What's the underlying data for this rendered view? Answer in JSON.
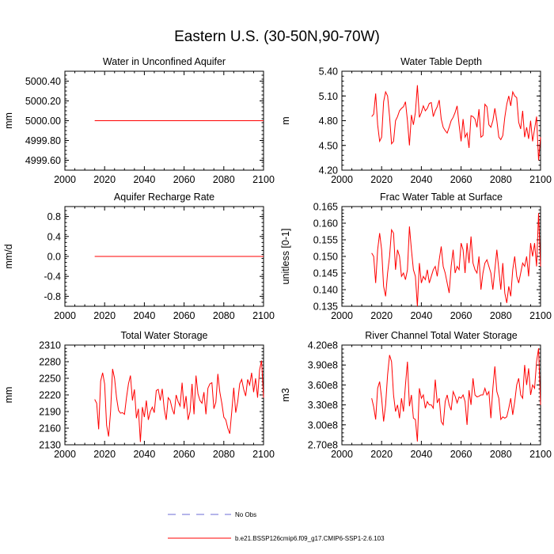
{
  "title": "Eastern U.S. (30-50N,90-70W)",
  "colors": {
    "series": "#ff0000",
    "obs": "#6b6bd6",
    "axis": "#000000"
  },
  "legend": {
    "obs_label": "No Obs",
    "model_label": "b.e21.BSSP126cmip6.f09_g17.CMIP6-SSP1-2.6.103"
  },
  "chart_data": [
    {
      "type": "line",
      "title": "Water in Unconfined Aquifer",
      "ylabel": "mm",
      "xlim": [
        2000,
        2100
      ],
      "ylim": [
        4999.5,
        5000.5
      ],
      "xticks": [
        2000,
        2020,
        2040,
        2060,
        2080,
        2100
      ],
      "xticklabels": [
        "2000",
        "2020",
        "2040",
        "2060",
        "2080",
        "2100"
      ],
      "yticks": [
        4999.6,
        4999.8,
        5000.0,
        5000.2,
        5000.4
      ],
      "yticklabels": [
        "4999.60",
        "4999.80",
        "5000.00",
        "5000.20",
        "5000.40"
      ],
      "x_start": 2015,
      "values": [
        5000,
        5000,
        5000,
        5000,
        5000,
        5000,
        5000,
        5000,
        5000,
        5000,
        5000,
        5000,
        5000,
        5000,
        5000,
        5000,
        5000,
        5000,
        5000,
        5000,
        5000,
        5000,
        5000,
        5000,
        5000,
        5000,
        5000,
        5000,
        5000,
        5000,
        5000,
        5000,
        5000,
        5000,
        5000,
        5000,
        5000,
        5000,
        5000,
        5000,
        5000,
        5000,
        5000,
        5000,
        5000,
        5000,
        5000,
        5000,
        5000,
        5000,
        5000,
        5000,
        5000,
        5000,
        5000,
        5000,
        5000,
        5000,
        5000,
        5000,
        5000,
        5000,
        5000,
        5000,
        5000,
        5000,
        5000,
        5000,
        5000,
        5000,
        5000,
        5000,
        5000,
        5000,
        5000,
        5000,
        5000,
        5000,
        5000,
        5000,
        5000,
        5000,
        5000,
        5000,
        5000,
        5000
      ]
    },
    {
      "type": "line",
      "title": "Water Table Depth",
      "ylabel": "m",
      "xlim": [
        2000,
        2100
      ],
      "ylim": [
        4.2,
        5.4
      ],
      "xticks": [
        2000,
        2020,
        2040,
        2060,
        2080,
        2100
      ],
      "xticklabels": [
        "2000",
        "2020",
        "2040",
        "2060",
        "2080",
        "2100"
      ],
      "yticks": [
        4.2,
        4.5,
        4.8,
        5.1,
        5.4
      ],
      "yticklabels": [
        "4.20",
        "4.50",
        "4.80",
        "5.10",
        "5.40"
      ],
      "x_start": 2015,
      "values": [
        4.85,
        4.88,
        5.13,
        4.75,
        4.55,
        4.6,
        5.03,
        5.15,
        5.1,
        4.85,
        4.52,
        4.55,
        4.8,
        4.85,
        4.92,
        4.95,
        4.97,
        5.03,
        4.8,
        4.5,
        4.87,
        4.75,
        4.9,
        5.23,
        4.84,
        4.9,
        4.98,
        4.92,
        4.95,
        5.01,
        5.02,
        4.85,
        4.92,
        4.97,
        5.05,
        4.82,
        4.72,
        4.68,
        4.65,
        4.72,
        4.8,
        4.84,
        4.9,
        4.98,
        4.75,
        4.55,
        4.82,
        4.6,
        4.65,
        4.47,
        4.86,
        4.85,
        4.82,
        4.72,
        4.94,
        4.6,
        4.62,
        5.0,
        4.97,
        4.75,
        4.72,
        4.8,
        4.95,
        4.8,
        4.6,
        4.57,
        4.62,
        4.84,
        5.0,
        5.1,
        4.98,
        5.15,
        5.1,
        5.08,
        4.78,
        4.7,
        4.92,
        4.6,
        4.72,
        4.58,
        4.8,
        4.55,
        4.7,
        4.85,
        4.32,
        4.6
      ]
    },
    {
      "type": "line",
      "title": "Aquifer Recharge Rate",
      "ylabel": "mm/d",
      "xlim": [
        2000,
        2100
      ],
      "ylim": [
        -1.0,
        1.0
      ],
      "xticks": [
        2000,
        2020,
        2040,
        2060,
        2080,
        2100
      ],
      "xticklabels": [
        "2000",
        "2020",
        "2040",
        "2060",
        "2080",
        "2100"
      ],
      "yticks": [
        -0.8,
        -0.4,
        0.0,
        0.4,
        0.8
      ],
      "yticklabels": [
        "-0.8",
        "-0.4",
        "0.0",
        "0.4",
        "0.8"
      ],
      "x_start": 2015,
      "values": [
        0,
        0,
        0,
        0,
        0,
        0,
        0,
        0,
        0,
        0,
        0,
        0,
        0,
        0,
        0,
        0,
        0,
        0,
        0,
        0,
        0,
        0,
        0,
        0,
        0,
        0,
        0,
        0,
        0,
        0,
        0,
        0,
        0,
        0,
        0,
        0,
        0,
        0,
        0,
        0,
        0,
        0,
        0,
        0,
        0,
        0,
        0,
        0,
        0,
        0,
        0,
        0,
        0,
        0,
        0,
        0,
        0,
        0,
        0,
        0,
        0,
        0,
        0,
        0,
        0,
        0,
        0,
        0,
        0,
        0,
        0,
        0,
        0,
        0,
        0,
        0,
        0,
        0,
        0,
        0,
        0,
        0,
        0,
        0,
        0,
        0
      ]
    },
    {
      "type": "line",
      "title": "Frac Water Table at Surface",
      "ylabel": "unitless [0-1]",
      "xlim": [
        2000,
        2100
      ],
      "ylim": [
        0.135,
        0.165
      ],
      "xticks": [
        2000,
        2020,
        2040,
        2060,
        2080,
        2100
      ],
      "xticklabels": [
        "2000",
        "2020",
        "2040",
        "2060",
        "2080",
        "2100"
      ],
      "yticks": [
        0.135,
        0.14,
        0.145,
        0.15,
        0.155,
        0.16,
        0.165
      ],
      "yticklabels": [
        "0.135",
        "0.140",
        "0.145",
        "0.150",
        "0.155",
        "0.160",
        "0.165"
      ],
      "x_start": 2015,
      "values": [
        0.151,
        0.15,
        0.142,
        0.152,
        0.157,
        0.152,
        0.141,
        0.138,
        0.145,
        0.15,
        0.158,
        0.157,
        0.146,
        0.152,
        0.15,
        0.144,
        0.145,
        0.143,
        0.146,
        0.159,
        0.152,
        0.146,
        0.144,
        0.135,
        0.148,
        0.142,
        0.144,
        0.143,
        0.146,
        0.142,
        0.144,
        0.146,
        0.147,
        0.144,
        0.149,
        0.153,
        0.147,
        0.145,
        0.142,
        0.139,
        0.147,
        0.152,
        0.145,
        0.147,
        0.146,
        0.154,
        0.152,
        0.145,
        0.154,
        0.148,
        0.156,
        0.148,
        0.146,
        0.145,
        0.15,
        0.14,
        0.145,
        0.148,
        0.149,
        0.147,
        0.145,
        0.14,
        0.146,
        0.152,
        0.146,
        0.14,
        0.148,
        0.139,
        0.136,
        0.141,
        0.138,
        0.146,
        0.15,
        0.144,
        0.142,
        0.145,
        0.148,
        0.147,
        0.15,
        0.144,
        0.154,
        0.15,
        0.154,
        0.147,
        0.163,
        0.147
      ]
    },
    {
      "type": "line",
      "title": "Total Water Storage",
      "ylabel": "mm",
      "xlim": [
        2000,
        2100
      ],
      "ylim": [
        2130,
        2310
      ],
      "xticks": [
        2000,
        2020,
        2040,
        2060,
        2080,
        2100
      ],
      "xticklabels": [
        "2000",
        "2020",
        "2040",
        "2060",
        "2080",
        "2100"
      ],
      "yticks": [
        2130,
        2160,
        2190,
        2220,
        2250,
        2280,
        2310
      ],
      "yticklabels": [
        "2130",
        "2160",
        "2190",
        "2220",
        "2250",
        "2280",
        "2310"
      ],
      "x_start": 2015,
      "values": [
        2212,
        2205,
        2158,
        2245,
        2260,
        2240,
        2165,
        2145,
        2190,
        2267,
        2250,
        2215,
        2192,
        2187,
        2188,
        2185,
        2215,
        2240,
        2255,
        2210,
        2230,
        2178,
        2195,
        2135,
        2198,
        2180,
        2210,
        2175,
        2190,
        2198,
        2188,
        2228,
        2230,
        2210,
        2231,
        2195,
        2175,
        2215,
        2210,
        2195,
        2185,
        2220,
        2208,
        2200,
        2242,
        2195,
        2218,
        2175,
        2190,
        2240,
        2185,
        2255,
        2222,
        2210,
        2205,
        2225,
        2185,
        2232,
        2240,
        2242,
        2195,
        2207,
        2258,
        2225,
        2205,
        2180,
        2175,
        2160,
        2150,
        2190,
        2233,
        2188,
        2208,
        2240,
        2248,
        2230,
        2218,
        2248,
        2238,
        2260,
        2225,
        2250,
        2215,
        2265,
        2282,
        2215
      ]
    },
    {
      "type": "line",
      "title": "River Channel Total Water Storage",
      "ylabel": "m3",
      "xlim": [
        2000,
        2100
      ],
      "ylim": [
        270000000,
        420000000
      ],
      "xticks": [
        2000,
        2020,
        2040,
        2060,
        2080,
        2100
      ],
      "xticklabels": [
        "2000",
        "2020",
        "2040",
        "2060",
        "2080",
        "2100"
      ],
      "yticks": [
        270000000,
        300000000,
        330000000,
        360000000,
        390000000,
        420000000
      ],
      "yticklabels": [
        "2.70e8",
        "3.00e8",
        "3.30e8",
        "3.60e8",
        "3.90e8",
        "4.20e8"
      ],
      "x_start": 2015,
      "values": [
        340000000,
        327000000,
        308000000,
        355000000,
        365000000,
        340000000,
        305000000,
        330000000,
        375000000,
        405000000,
        395000000,
        345000000,
        320000000,
        330000000,
        310000000,
        340000000,
        320000000,
        360000000,
        395000000,
        328000000,
        345000000,
        310000000,
        308000000,
        275000000,
        355000000,
        340000000,
        345000000,
        325000000,
        335000000,
        330000000,
        330000000,
        325000000,
        368000000,
        333000000,
        340000000,
        305000000,
        300000000,
        335000000,
        345000000,
        330000000,
        322000000,
        350000000,
        343000000,
        333000000,
        342000000,
        340000000,
        345000000,
        335000000,
        300000000,
        352000000,
        330000000,
        370000000,
        345000000,
        342000000,
        343000000,
        345000000,
        345000000,
        355000000,
        345000000,
        350000000,
        310000000,
        355000000,
        388000000,
        350000000,
        340000000,
        308000000,
        312000000,
        310000000,
        312000000,
        325000000,
        340000000,
        315000000,
        335000000,
        360000000,
        370000000,
        345000000,
        340000000,
        390000000,
        360000000,
        385000000,
        345000000,
        360000000,
        355000000,
        395000000,
        415000000,
        330000000
      ]
    }
  ]
}
